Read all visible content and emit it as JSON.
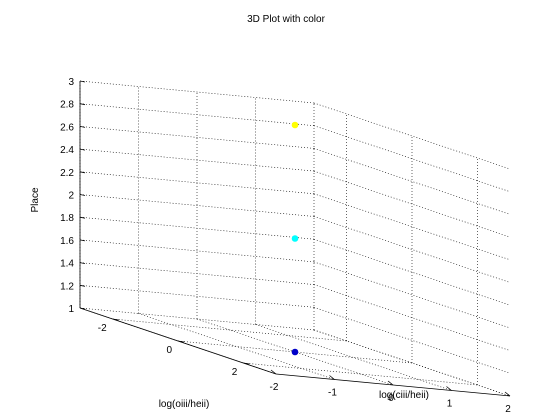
{
  "chart_data": {
    "type": "scatter",
    "title": "3D Plot with color",
    "xlabel": "log(ciii/heii)",
    "ylabel": "log(oiii/heii)",
    "zlabel": "Place",
    "xlim": [
      -2,
      2
    ],
    "ylim": [
      -3,
      3
    ],
    "zlim": [
      1,
      3
    ],
    "x_ticks": [
      "-2",
      "-1",
      "0",
      "1",
      "2"
    ],
    "y_ticks": [
      "-2",
      "0",
      "2"
    ],
    "z_ticks": [
      "1",
      "1.2",
      "1.4",
      "1.6",
      "1.8",
      "2",
      "2.2",
      "2.4",
      "2.6",
      "2.8",
      "3"
    ],
    "grid": true,
    "points": [
      {
        "x": 0.0,
        "y": 0.0,
        "z": 1.0,
        "color": "#0000c8"
      },
      {
        "x": 0.0,
        "y": 0.0,
        "z": 2.0,
        "color": "#00ffff"
      },
      {
        "x": 0.0,
        "y": 0.0,
        "z": 3.0,
        "color": "#ffff00"
      }
    ]
  }
}
